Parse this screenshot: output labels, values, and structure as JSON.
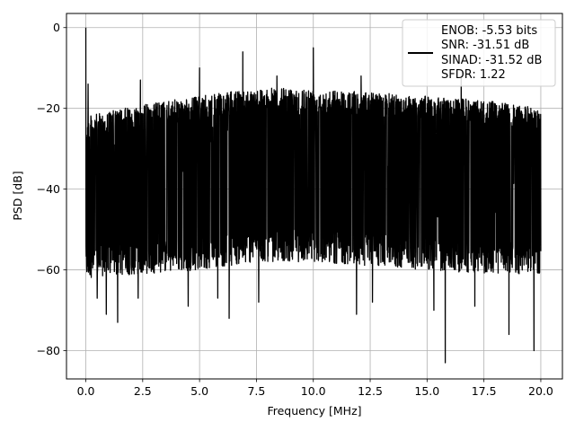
{
  "chart_data": {
    "type": "line",
    "title": "",
    "xlabel": "Frequency [MHz]",
    "ylabel": "PSD [dB]",
    "xlim": [
      -0.85,
      20.95
    ],
    "ylim": [
      -87,
      3.5
    ],
    "xticks": [
      0.0,
      2.5,
      5.0,
      7.5,
      10.0,
      12.5,
      15.0,
      17.5,
      20.0
    ],
    "xtick_labels": [
      "0.0",
      "2.5",
      "5.0",
      "7.5",
      "10.0",
      "12.5",
      "15.0",
      "17.5",
      "20.0"
    ],
    "yticks": [
      0,
      -20,
      -40,
      -60,
      -80
    ],
    "ytick_labels": [
      "0",
      "−20",
      "−40",
      "−60",
      "−80"
    ],
    "grid": true,
    "legend_position": "top-right",
    "legend_entries": [
      "ENOB: -5.53 bits",
      "SNR: -31.51 dB",
      "SINAD: -31.52 dB",
      "SFDR: 1.22"
    ],
    "series": [
      {
        "color": "#000000",
        "noise_band": {
          "x_range": [
            0.0,
            20.0
          ],
          "upper_envelope": [
            [
              0.0,
              -22
            ],
            [
              2.5,
              -19
            ],
            [
              5.0,
              -17
            ],
            [
              7.5,
              -15
            ],
            [
              10.0,
              -15
            ],
            [
              12.5,
              -16
            ],
            [
              15.0,
              -17
            ],
            [
              17.5,
              -18
            ],
            [
              20.0,
              -20
            ]
          ],
          "lower_envelope": [
            [
              0.0,
              -62
            ],
            [
              2.5,
              -61
            ],
            [
              5.0,
              -60
            ],
            [
              7.5,
              -58
            ],
            [
              10.0,
              -58
            ],
            [
              12.5,
              -59
            ],
            [
              15.0,
              -60
            ],
            [
              17.5,
              -61
            ],
            [
              20.0,
              -61
            ]
          ]
        },
        "spikes": [
          [
            0.0,
            0.0
          ],
          [
            0.1,
            -14
          ],
          [
            5.0,
            -10
          ],
          [
            6.9,
            -6
          ],
          [
            10.0,
            -5
          ],
          [
            2.4,
            -13
          ],
          [
            8.4,
            -12
          ],
          [
            12.1,
            -12
          ],
          [
            16.5,
            -12
          ]
        ],
        "dips": [
          [
            0.5,
            -67
          ],
          [
            0.9,
            -71
          ],
          [
            1.4,
            -73
          ],
          [
            2.3,
            -67
          ],
          [
            4.5,
            -69
          ],
          [
            5.8,
            -67
          ],
          [
            6.3,
            -72
          ],
          [
            7.6,
            -68
          ],
          [
            11.9,
            -71
          ],
          [
            12.6,
            -68
          ],
          [
            15.3,
            -70
          ],
          [
            15.8,
            -83
          ],
          [
            17.1,
            -69
          ],
          [
            18.6,
            -76
          ],
          [
            19.7,
            -80
          ]
        ]
      }
    ]
  }
}
